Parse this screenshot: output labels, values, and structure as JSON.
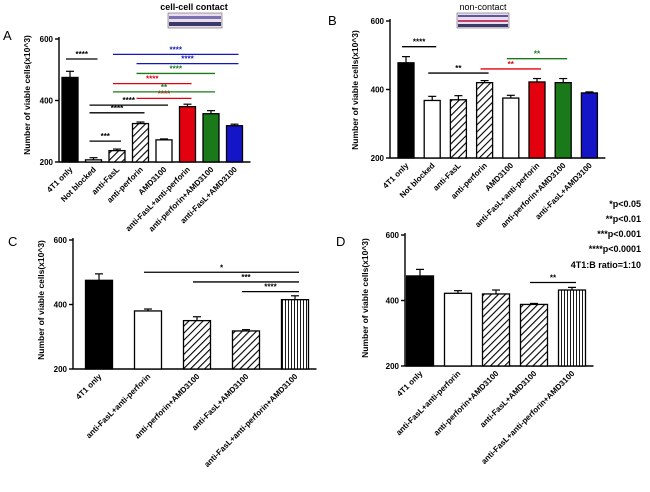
{
  "figure": {
    "inset_labels": {
      "A": "cell-cell contact",
      "B": "non-contact"
    },
    "legend": [
      "*p<0.05",
      "**p<0.01",
      "***p<0.001",
      "****p<0.0001",
      "4T1:B ratio=1:10"
    ],
    "colors": {
      "black": "#000000",
      "red": "#e3000f",
      "green": "#1a7a1a",
      "blue": "#1515c8",
      "white": "#ffffff"
    }
  },
  "chart_data": [
    {
      "panel": "A",
      "type": "bar",
      "ylabel": "Number of viable cells(x10^3)",
      "ylim": [
        200,
        600
      ],
      "yticks": [
        200,
        400,
        600
      ],
      "categories": [
        "4T1 only",
        "Not blocked",
        "anti-FasL",
        "anti-perforin",
        "AMD3100",
        "anti-FasL+anti-perforin",
        "anti-perforin+AMD3100",
        "anti-FasL+AMD3100"
      ],
      "values": [
        475,
        207,
        237,
        325,
        272,
        380,
        357,
        318
      ],
      "errors": [
        20,
        7,
        5,
        5,
        3,
        8,
        10,
        5
      ],
      "fills": [
        "black",
        "white",
        "hatch",
        "hatch",
        "white",
        "red",
        "green",
        "blue"
      ],
      "significance": [
        {
          "from": 0,
          "to": 1,
          "label": "****",
          "color": "black",
          "level": 535
        },
        {
          "from": 1,
          "to": 2,
          "label": "***",
          "color": "black",
          "level": 268
        },
        {
          "from": 1,
          "to": 3,
          "label": "****",
          "color": "black",
          "level": 360
        },
        {
          "from": 1,
          "to": 4,
          "label": "****",
          "color": "black",
          "level": 385
        },
        {
          "from": 2,
          "to": 5,
          "label": "****",
          "color": "red",
          "level": 455
        },
        {
          "from": 3,
          "to": 5,
          "label": "****",
          "color": "red",
          "level": 407
        },
        {
          "from": 2,
          "to": 6,
          "label": "**",
          "color": "green",
          "level": 428
        },
        {
          "from": 3,
          "to": 6,
          "label": "****",
          "color": "green",
          "level": 488
        },
        {
          "from": 2,
          "to": 7,
          "label": "****",
          "color": "blue",
          "level": 550
        },
        {
          "from": 3,
          "to": 7,
          "label": "****",
          "color": "blue",
          "level": 520
        }
      ]
    },
    {
      "panel": "B",
      "type": "bar",
      "ylabel": "Number of viable cells(x10^3)",
      "ylim": [
        200,
        600
      ],
      "yticks": [
        200,
        400,
        600
      ],
      "categories": [
        "4T1 only",
        "Not blocked",
        "anti-FasL",
        "anti-perforin",
        "AMD3100",
        "anti-FasL+anti-perforin",
        "anti-perforin+AMD3100",
        "anti-FasL+AMD3100"
      ],
      "values": [
        478,
        368,
        370,
        420,
        375,
        422,
        420,
        390
      ],
      "errors": [
        18,
        12,
        12,
        6,
        8,
        10,
        12,
        3
      ],
      "fills": [
        "black",
        "white",
        "hatch",
        "hatch",
        "white",
        "red",
        "green",
        "blue"
      ],
      "significance": [
        {
          "from": 0,
          "to": 1,
          "label": "****",
          "color": "black",
          "level": 525
        },
        {
          "from": 1,
          "to": 3,
          "label": "**",
          "color": "black",
          "level": 448
        },
        {
          "from": 3,
          "to": 5,
          "label": "**",
          "color": "red",
          "level": 460
        },
        {
          "from": 4,
          "to": 6,
          "label": "**",
          "color": "green",
          "level": 490
        }
      ]
    },
    {
      "panel": "C",
      "type": "bar",
      "ylabel": "Number of viable cells(x10^3)",
      "ylim": [
        200,
        600
      ],
      "yticks": [
        200,
        400,
        600
      ],
      "categories": [
        "4T1 only",
        "anti-FasL+anti-perforin",
        "anti-perforin+AMD3100",
        "anti-FasL+AMD3100",
        "anti-FasL+anti-perforin+AMD3100"
      ],
      "values": [
        475,
        380,
        350,
        318,
        415
      ],
      "errors": [
        20,
        6,
        12,
        4,
        12
      ],
      "fills": [
        "black",
        "white",
        "hatch",
        "hatch",
        "vstripe"
      ],
      "significance": [
        {
          "from": 1,
          "to": 4,
          "label": "*",
          "color": "black",
          "level": 500
        },
        {
          "from": 2,
          "to": 4,
          "label": "***",
          "color": "black",
          "level": 470
        },
        {
          "from": 3,
          "to": 4,
          "label": "****",
          "color": "black",
          "level": 440
        }
      ]
    },
    {
      "panel": "D",
      "type": "bar",
      "ylabel": "Number of viable cells(x10^3)",
      "ylim": [
        200,
        600
      ],
      "yticks": [
        200,
        400,
        600
      ],
      "categories": [
        "4T1 only",
        "anti-FasL+anti-perforin",
        "anti-perforin+AMD3100",
        "anti-FasL+AMD3100",
        "anti-FasL+anti-perforin+AMD3100"
      ],
      "values": [
        475,
        422,
        420,
        388,
        432
      ],
      "errors": [
        20,
        8,
        12,
        3,
        8
      ],
      "fills": [
        "black",
        "white",
        "hatch",
        "hatch",
        "vstripe"
      ],
      "significance": [
        {
          "from": 3,
          "to": 4,
          "label": "**",
          "color": "black",
          "level": 455
        }
      ]
    }
  ]
}
